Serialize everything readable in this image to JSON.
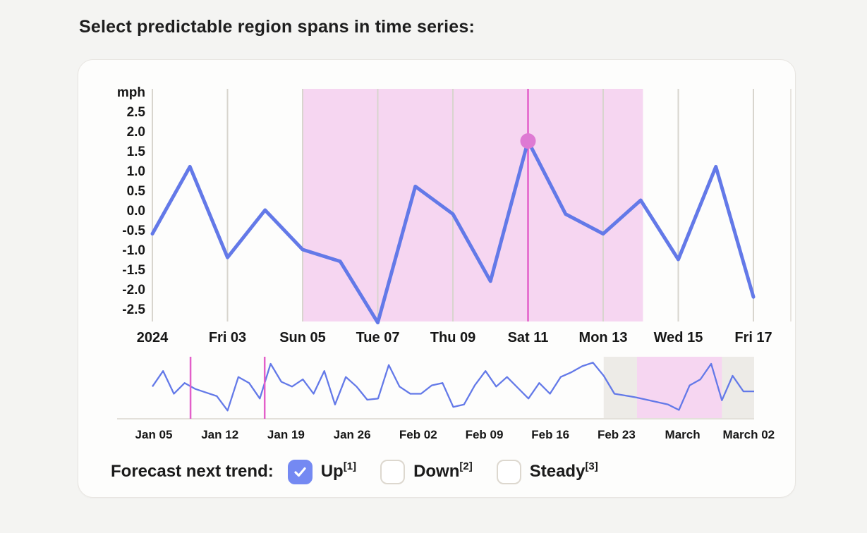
{
  "page": {
    "title": "Select predictable region spans in time series:"
  },
  "chart_data": [
    {
      "type": "line",
      "name": "main-series",
      "title": "",
      "ylabel": "mph",
      "y_axis_unit_label": "mph",
      "x_tick_labels": [
        "2024",
        "Fri 03",
        "Sun 05",
        "Tue 07",
        "Thu 09",
        "Sat 11",
        "Mon 13",
        "Wed 15",
        "Fri 17"
      ],
      "y_tick_labels": [
        "2.5",
        "2.0",
        "1.5",
        "1.0",
        "0.5",
        "0.0",
        "-0.5",
        "-1.0",
        "-1.5",
        "-2.0",
        "-2.5"
      ],
      "ylim": [
        -2.5,
        2.5
      ],
      "grid": "vertical",
      "values": [
        -0.6,
        1.1,
        -1.2,
        0.0,
        -1.0,
        -1.3,
        -2.85,
        0.6,
        -0.1,
        -1.8,
        1.75,
        -0.1,
        -0.6,
        0.25,
        -1.25,
        1.1,
        -2.2
      ],
      "selected_region_span_days": [
        4,
        13.06
      ],
      "marker": {
        "day_index": 10,
        "value": 1.75,
        "tick_label": "Sat 11",
        "unit": "mph"
      }
    },
    {
      "type": "line",
      "name": "overview-series",
      "x_tick_labels": [
        "Jan 05",
        "Jan 12",
        "Jan 19",
        "Jan 26",
        "Feb 02",
        "Feb 09",
        "Feb 16",
        "Feb 23",
        "March",
        "March 02"
      ],
      "values": [
        0.1,
        1.4,
        -0.5,
        0.4,
        -0.1,
        -0.4,
        -0.7,
        -1.9,
        0.9,
        0.4,
        -0.9,
        2.0,
        0.5,
        0.1,
        0.7,
        -0.5,
        1.4,
        -1.4,
        0.9,
        0.1,
        -1.0,
        -0.9,
        1.9,
        0.1,
        -0.5,
        -0.5,
        0.2,
        0.4,
        -1.6,
        -1.4,
        0.2,
        1.4,
        0.1,
        0.9,
        0.0,
        -0.9,
        0.4,
        -0.5,
        0.9,
        1.3,
        1.8,
        2.1,
        1.0,
        -0.5,
        -0.65,
        -0.8,
        -1.0,
        -1.2,
        -1.4,
        -1.85,
        0.2,
        0.7,
        2.0,
        -1.05,
        1.0,
        -0.3,
        -0.3
      ],
      "ylim": [
        -2.2,
        2.2
      ],
      "dimmed_span_days": [
        42,
        56
      ],
      "selected_span_days": [
        45.1,
        53
      ],
      "brush_line_days": [
        3.55,
        10.45
      ]
    }
  ],
  "forecast": {
    "label": "Forecast next trend:",
    "options": [
      {
        "label": "Up",
        "sup": "[1]",
        "checked": true
      },
      {
        "label": "Down",
        "sup": "[2]",
        "checked": false
      },
      {
        "label": "Steady",
        "sup": "[3]",
        "checked": false
      }
    ]
  },
  "colors": {
    "line": "#6379e8",
    "region": "#f6d6f1",
    "gray_band": "#edebe7",
    "marker_line": "#e35fc9",
    "marker_dot": "#de7ad3",
    "gridline": "#d8d5ce",
    "gridline_faint": "#e8e5e0",
    "baseline": "#e3e0da",
    "checkbox_checked": "#7489f2",
    "checkbox_border": "#ddd8cf"
  }
}
